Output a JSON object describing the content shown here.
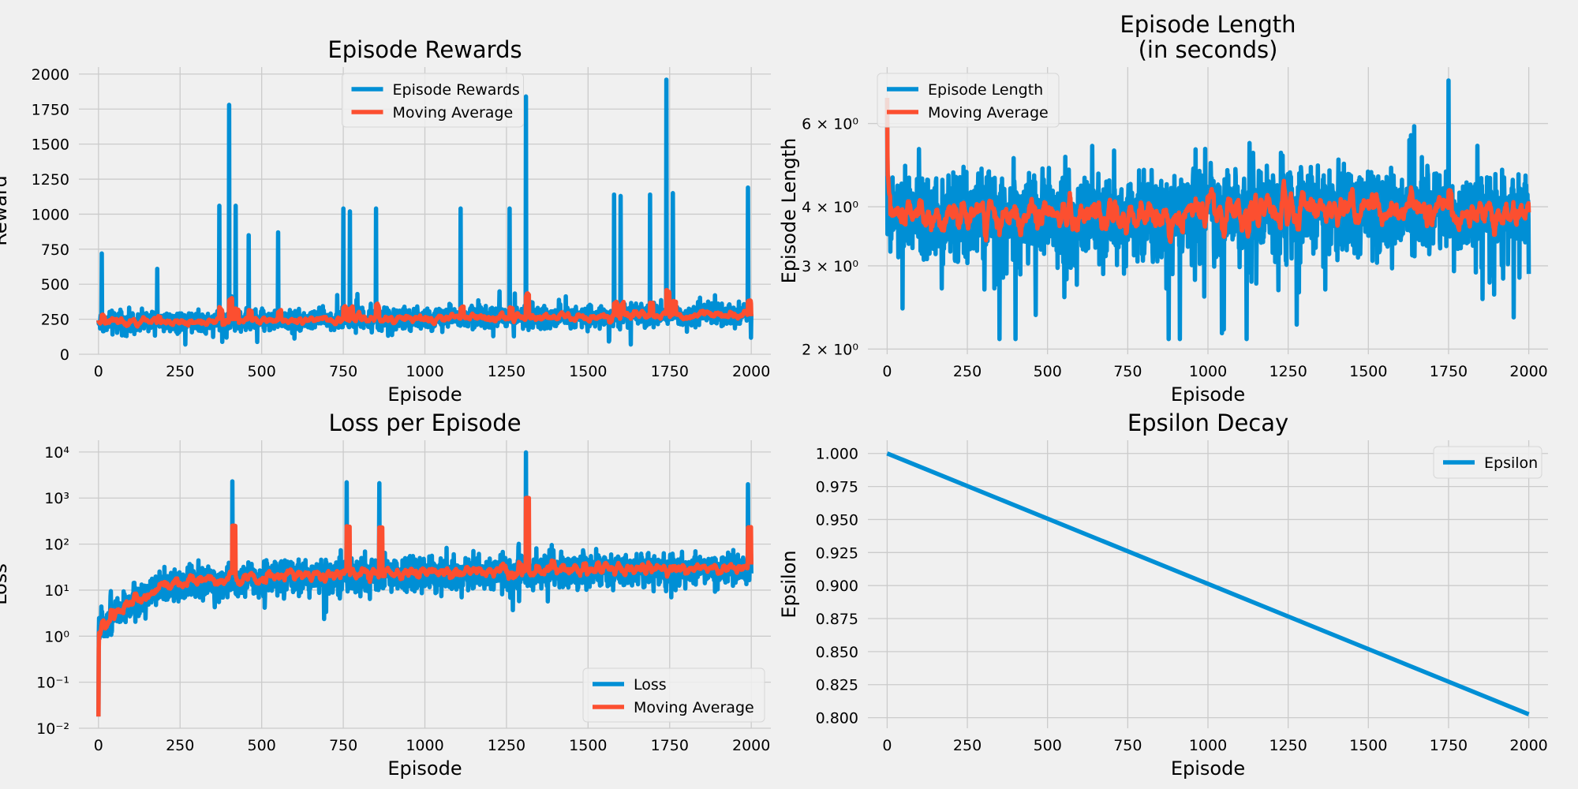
{
  "chart_data": [
    {
      "type": "line",
      "title": "Episode Rewards",
      "xlabel": "Episode",
      "ylabel": "Reward",
      "xlim": [
        -60,
        2060
      ],
      "ylim": [
        0,
        2050
      ],
      "yscale": "linear",
      "xticks": [
        0,
        250,
        500,
        750,
        1000,
        1250,
        1500,
        1750,
        2000
      ],
      "yticks": [
        0,
        250,
        500,
        750,
        1000,
        1250,
        1500,
        1750,
        2000
      ],
      "grid": true,
      "legend": "upper center",
      "colors": {
        "series_1": "#008fd5",
        "series_2": "#fc4f30"
      },
      "series": [
        {
          "name": "Episode Rewards",
          "generator": "noisy",
          "x_range": [
            0,
            2000
          ],
          "n": 2000,
          "base": [
            [
              0,
              230
            ],
            [
              500,
              245
            ],
            [
              1000,
              255
            ],
            [
              1500,
              270
            ],
            [
              2000,
              290
            ]
          ],
          "noise": 110,
          "min": 70,
          "spikes": [
            [
              10,
              720
            ],
            [
              180,
              610
            ],
            [
              370,
              1060
            ],
            [
              400,
              1780
            ],
            [
              420,
              1060
            ],
            [
              460,
              850
            ],
            [
              550,
              870
            ],
            [
              750,
              1040
            ],
            [
              770,
              1020
            ],
            [
              850,
              1040
            ],
            [
              1110,
              1040
            ],
            [
              1260,
              1040
            ],
            [
              1310,
              1840
            ],
            [
              1580,
              1140
            ],
            [
              1600,
              1130
            ],
            [
              1690,
              1140
            ],
            [
              1740,
              1960
            ],
            [
              1760,
              1150
            ],
            [
              1990,
              1190
            ]
          ]
        },
        {
          "name": "Moving Average",
          "generator": "moving_average",
          "source": 0,
          "window": 10
        }
      ]
    },
    {
      "type": "line",
      "title": "Episode Length\n(in seconds)",
      "xlabel": "Episode",
      "ylabel": "Episode Length",
      "xlim": [
        -60,
        2060
      ],
      "ylim": [
        1.95,
        7.9
      ],
      "yscale": "log",
      "xticks": [
        0,
        250,
        500,
        750,
        1000,
        1250,
        1500,
        1750,
        2000
      ],
      "yticks": [
        2,
        3,
        4,
        6
      ],
      "ytick_labels": [
        "2 × 10⁰",
        "3 × 10⁰",
        "4 × 10⁰",
        "6 × 10⁰"
      ],
      "grid": true,
      "legend": "upper left",
      "colors": {
        "series_1": "#008fd5",
        "series_2": "#fc4f30"
      },
      "series": [
        {
          "name": "Episode Length",
          "generator": "noisy",
          "x_range": [
            0,
            2000
          ],
          "n": 2000,
          "base": [
            [
              0,
              3.8
            ],
            [
              500,
              3.85
            ],
            [
              1000,
              3.9
            ],
            [
              1500,
              3.95
            ],
            [
              2000,
              3.8
            ]
          ],
          "noise": 1.2,
          "min": 2.1,
          "max": 7.5,
          "spikes": [
            [
              0,
              6.8
            ],
            [
              350,
              2.1
            ],
            [
              1050,
              2.2
            ],
            [
              1750,
              7.4
            ]
          ]
        },
        {
          "name": "Moving Average",
          "generator": "moving_average",
          "source": 0,
          "window": 10
        }
      ]
    },
    {
      "type": "line",
      "title": "Loss per Episode",
      "xlabel": "Episode",
      "ylabel": "Loss",
      "xlim": [
        -60,
        2060
      ],
      "ylim": [
        0.01,
        18000
      ],
      "yscale": "log",
      "xticks": [
        0,
        250,
        500,
        750,
        1000,
        1250,
        1500,
        1750,
        2000
      ],
      "yticks": [
        0.01,
        0.1,
        1,
        10,
        100,
        1000,
        10000
      ],
      "ytick_labels": [
        "10⁻²",
        "10⁻¹",
        "10⁰",
        "10¹",
        "10²",
        "10³",
        "10⁴"
      ],
      "grid": true,
      "legend": "lower right",
      "colors": {
        "series_1": "#008fd5",
        "series_2": "#fc4f30"
      },
      "series": [
        {
          "name": "Loss",
          "generator": "noisy_log",
          "x_range": [
            0,
            2000
          ],
          "n": 2000,
          "base": [
            [
              0,
              1.2
            ],
            [
              100,
              5
            ],
            [
              250,
              14
            ],
            [
              500,
              18
            ],
            [
              1000,
              22
            ],
            [
              1500,
              25
            ],
            [
              2000,
              28
            ]
          ],
          "noise_log": 0.55,
          "min": 1,
          "start": [
            [
              0,
              0.018
            ],
            [
              3,
              0.9
            ]
          ],
          "spikes": [
            [
              410,
              2300
            ],
            [
              760,
              2200
            ],
            [
              860,
              2100
            ],
            [
              1310,
              9800
            ],
            [
              1990,
              2000
            ]
          ]
        },
        {
          "name": "Moving Average",
          "generator": "moving_average_log",
          "source": 0,
          "window": 10
        }
      ]
    },
    {
      "type": "line",
      "title": "Epsilon Decay",
      "xlabel": "Episode",
      "ylabel": "Epsilon",
      "xlim": [
        -60,
        2060
      ],
      "ylim": [
        0.792,
        1.01
      ],
      "yscale": "linear",
      "xticks": [
        0,
        250,
        500,
        750,
        1000,
        1250,
        1500,
        1750,
        2000
      ],
      "yticks": [
        0.8,
        0.825,
        0.85,
        0.875,
        0.9,
        0.925,
        0.95,
        0.975,
        1.0
      ],
      "ytick_labels": [
        "0.800",
        "0.825",
        "0.850",
        "0.875",
        "0.900",
        "0.925",
        "0.950",
        "0.975",
        "1.000"
      ],
      "grid": true,
      "legend": "upper right",
      "colors": {
        "series_1": "#008fd5"
      },
      "series": [
        {
          "name": "Epsilon",
          "x": [
            0,
            2000
          ],
          "y": [
            1.0,
            0.8026
          ]
        }
      ]
    }
  ]
}
